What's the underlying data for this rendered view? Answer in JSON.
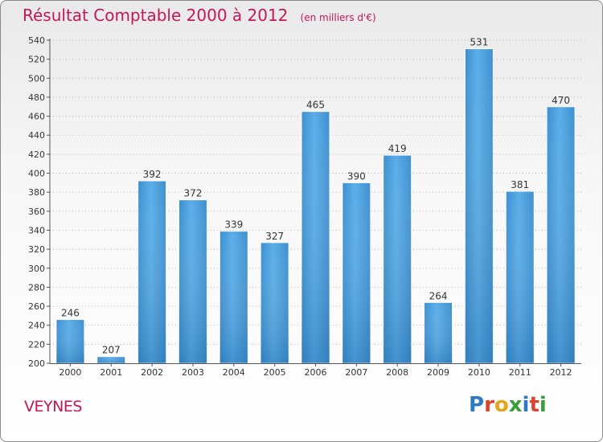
{
  "chart_data": {
    "type": "bar",
    "title": "Résultat Comptable 2000 à 2012",
    "unit": "(en milliers d'€)",
    "categories": [
      "2000",
      "2001",
      "2002",
      "2003",
      "2004",
      "2005",
      "2006",
      "2007",
      "2008",
      "2009",
      "2010",
      "2011",
      "2012"
    ],
    "values": [
      246,
      207,
      392,
      372,
      339,
      327,
      465,
      390,
      419,
      264,
      531,
      381,
      470
    ],
    "ylim": [
      200,
      540
    ],
    "yticks": [
      200,
      220,
      240,
      260,
      280,
      300,
      320,
      340,
      360,
      380,
      400,
      420,
      440,
      460,
      480,
      500,
      520,
      540
    ],
    "grid": "horizontal-dotted",
    "bar_color": "#4a9fdc"
  },
  "footer": {
    "city": "VEYNES",
    "logo": [
      "P",
      "r",
      "o",
      "x",
      "i",
      "t",
      "i"
    ],
    "logo_colors": [
      "#2f78c2",
      "#d7442f",
      "#e8a31a",
      "#3a9e3a",
      "#2f78c2",
      "#d7442f",
      "#3a9e3a"
    ]
  }
}
